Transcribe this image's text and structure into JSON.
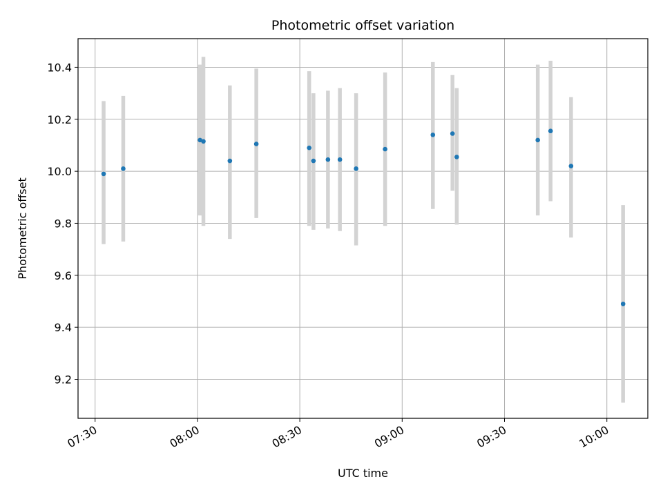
{
  "chart_data": {
    "type": "scatter",
    "title": "Photometric offset variation",
    "xlabel": "UTC time",
    "ylabel": "Photometric offset",
    "x_unit": "HH:MM UTC",
    "xlim": [
      "07:25",
      "10:12"
    ],
    "ylim": [
      9.05,
      10.51
    ],
    "x_ticks": [
      "07:30",
      "08:00",
      "08:30",
      "09:00",
      "09:30",
      "10:00"
    ],
    "y_ticks": [
      9.2,
      9.4,
      9.6,
      9.8,
      10.0,
      10.2,
      10.4
    ],
    "y_tick_labels": [
      "9.2",
      "9.4",
      "9.6",
      "9.8",
      "10.0",
      "10.2",
      "10.4"
    ],
    "grid": true,
    "marker_color": "#1f77b4",
    "errorbar_color": "#d3d3d3",
    "series": [
      {
        "points": [
          {
            "x": "07:32:30",
            "y": 9.99,
            "ylow": 9.72,
            "yhigh": 10.27
          },
          {
            "x": "07:38:15",
            "y": 10.01,
            "ylow": 9.73,
            "yhigh": 10.29
          },
          {
            "x": "08:00:45",
            "y": 10.12,
            "ylow": 9.83,
            "yhigh": 10.41
          },
          {
            "x": "08:01:45",
            "y": 10.115,
            "ylow": 9.79,
            "yhigh": 10.44
          },
          {
            "x": "08:09:30",
            "y": 10.04,
            "ylow": 9.74,
            "yhigh": 10.33
          },
          {
            "x": "08:17:15",
            "y": 10.105,
            "ylow": 9.82,
            "yhigh": 10.395
          },
          {
            "x": "08:32:45",
            "y": 10.09,
            "ylow": 9.79,
            "yhigh": 10.385
          },
          {
            "x": "08:34:00",
            "y": 10.04,
            "ylow": 9.775,
            "yhigh": 10.3
          },
          {
            "x": "08:38:15",
            "y": 10.045,
            "ylow": 9.78,
            "yhigh": 10.31
          },
          {
            "x": "08:41:45",
            "y": 10.045,
            "ylow": 9.77,
            "yhigh": 10.32
          },
          {
            "x": "08:46:30",
            "y": 10.01,
            "ylow": 9.715,
            "yhigh": 10.3
          },
          {
            "x": "08:55:00",
            "y": 10.085,
            "ylow": 9.79,
            "yhigh": 10.38
          },
          {
            "x": "09:09:00",
            "y": 10.14,
            "ylow": 9.855,
            "yhigh": 10.42
          },
          {
            "x": "09:14:45",
            "y": 10.145,
            "ylow": 9.925,
            "yhigh": 10.37
          },
          {
            "x": "09:16:00",
            "y": 10.055,
            "ylow": 9.795,
            "yhigh": 10.32
          },
          {
            "x": "09:39:45",
            "y": 10.12,
            "ylow": 9.83,
            "yhigh": 10.41
          },
          {
            "x": "09:43:30",
            "y": 10.155,
            "ylow": 9.885,
            "yhigh": 10.425
          },
          {
            "x": "09:49:30",
            "y": 10.02,
            "ylow": 9.745,
            "yhigh": 10.285
          },
          {
            "x": "10:04:45",
            "y": 9.49,
            "ylow": 9.11,
            "yhigh": 9.87
          }
        ]
      }
    ]
  }
}
